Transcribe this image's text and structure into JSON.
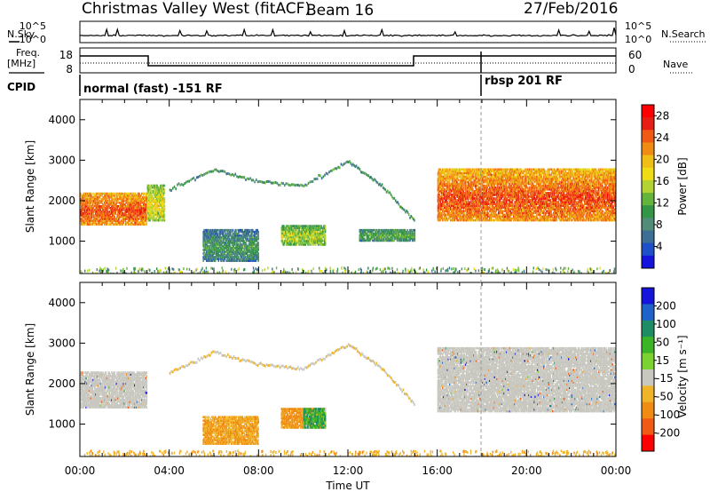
{
  "header": {
    "station": "Christmas Valley West (fitACF)",
    "beam": "Beam 16",
    "date": "27/Feb/2016"
  },
  "top_panels": {
    "nsky_label": "N.Sky",
    "nsearch_label": "N.Search",
    "noise_ticks": [
      "10^5",
      "10^0"
    ],
    "freq_label_1": "Freq.",
    "freq_label_2": "[MHz]",
    "freq_ticks": [
      "18",
      "8"
    ],
    "nave_label": "Nave",
    "nave_ticks": [
      "60",
      "0"
    ],
    "cpid_label": "CPID",
    "cpid_segments": [
      {
        "label": "normal (fast) -151 RF",
        "start": "00:00",
        "end": "18:00"
      },
      {
        "label": "rbsp 201 RF",
        "start": "18:00",
        "end": "24:00"
      }
    ]
  },
  "colors": {
    "power_scale": [
      "#1414dc",
      "#1e50c8",
      "#3c6e96",
      "#508c78",
      "#329646",
      "#64b43c",
      "#b4d232",
      "#f0dc14",
      "#f0be14",
      "#f08c14",
      "#f05a14",
      "#e61e14",
      "#ff0000"
    ],
    "velocity_scale": [
      "#1414dc",
      "#1e64c8",
      "#1e8c64",
      "#3cb428",
      "#7cd232",
      "#c8c8c0",
      "#f0b428",
      "#f08c14",
      "#f05a14",
      "#ff0000"
    ],
    "ground_scatter": "#c8c8c0"
  },
  "chart_data": [
    {
      "type": "heatmap",
      "name": "Power",
      "ylabel": "Slant Range [km]",
      "x_ticks": [
        "00:00",
        "04:00",
        "08:00",
        "12:00",
        "16:00",
        "20:00",
        "00:00"
      ],
      "y_ticks": [
        "1000",
        "2000",
        "3000",
        "4000"
      ],
      "ylim": [
        200,
        4500
      ],
      "xlim_hours": [
        0,
        24
      ],
      "colorbar": {
        "label": "Power [dB]",
        "ticks": [
          "28",
          "24",
          "20",
          "16",
          "12",
          "8",
          "4"
        ],
        "range": [
          0,
          30
        ]
      },
      "regions": [
        {
          "t": [
            0,
            3
          ],
          "range_km": [
            1400,
            2200
          ],
          "value_db": 26
        },
        {
          "t": [
            3,
            3.8
          ],
          "range_km": [
            1500,
            2400
          ],
          "value_db": 18
        },
        {
          "t": [
            5.5,
            8
          ],
          "range_km": [
            500,
            1300
          ],
          "value_db": 10
        },
        {
          "t": [
            9,
            11
          ],
          "range_km": [
            900,
            1400
          ],
          "value_db": 16
        },
        {
          "t": [
            12.5,
            15
          ],
          "range_km": [
            1000,
            1300
          ],
          "value_db": 12
        },
        {
          "t": [
            16,
            24
          ],
          "range_km": [
            1500,
            2800
          ],
          "value_db": 26
        }
      ]
    },
    {
      "type": "heatmap",
      "name": "Velocity",
      "xlabel": "Time UT",
      "ylabel": "Slant Range [km]",
      "x_ticks": [
        "00:00",
        "04:00",
        "08:00",
        "12:00",
        "16:00",
        "20:00",
        "00:00"
      ],
      "y_ticks": [
        "1000",
        "2000",
        "3000",
        "4000"
      ],
      "ylim": [
        200,
        4500
      ],
      "xlim_hours": [
        0,
        24
      ],
      "colorbar": {
        "label": "Velocity [m s⁻¹]",
        "ticks": [
          "200",
          "100",
          "50",
          "15",
          "-15",
          "-50",
          "-100",
          "-200"
        ],
        "range": [
          -250,
          250
        ]
      },
      "regions": [
        {
          "t": [
            0,
            3
          ],
          "range_km": [
            1400,
            2300
          ],
          "value_ms": 0,
          "ground_scatter": true
        },
        {
          "t": [
            5.5,
            8
          ],
          "range_km": [
            500,
            1200
          ],
          "value_ms": -50
        },
        {
          "t": [
            9,
            11
          ],
          "range_km": [
            900,
            1400
          ],
          "value_ms": -60
        },
        {
          "t": [
            10,
            11
          ],
          "range_km": [
            900,
            1400
          ],
          "value_ms": 30
        },
        {
          "t": [
            16,
            24
          ],
          "range_km": [
            1300,
            2900
          ],
          "value_ms": 0,
          "ground_scatter": true
        }
      ]
    }
  ]
}
